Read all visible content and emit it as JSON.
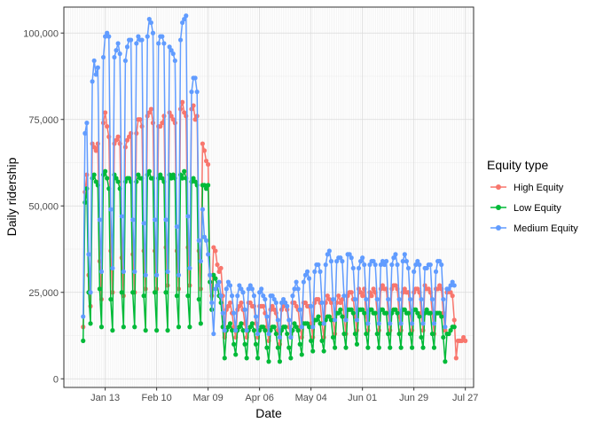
{
  "chart_data": {
    "type": "line",
    "xlabel": "Date",
    "ylabel": "Daily ridership",
    "x_start": "2020-01-01",
    "ylim": [
      0,
      105000
    ],
    "grid": true,
    "legend_title": "Equity type",
    "legend_position": "right",
    "x_ticks": [
      {
        "date": "2020-01-13",
        "label": "Jan 13"
      },
      {
        "date": "2020-02-10",
        "label": "Feb 10"
      },
      {
        "date": "2020-03-09",
        "label": "Mar 09"
      },
      {
        "date": "2020-04-06",
        "label": "Apr 06"
      },
      {
        "date": "2020-05-04",
        "label": "May 04"
      },
      {
        "date": "2020-06-01",
        "label": "Jun 01"
      },
      {
        "date": "2020-06-29",
        "label": "Jun 29"
      },
      {
        "date": "2020-07-27",
        "label": "Jul 27"
      }
    ],
    "y_ticks": [
      {
        "value": 0,
        "label": "0"
      },
      {
        "value": 25000,
        "label": "25,000"
      },
      {
        "value": 50000,
        "label": "50,000"
      },
      {
        "value": 75000,
        "label": "75,000"
      },
      {
        "value": 100000,
        "label": "100,000"
      }
    ],
    "series": [
      {
        "name": "High Equity",
        "color": "#F8766D",
        "values": [
          15000,
          54000,
          59000,
          30000,
          21000,
          68000,
          67000,
          66000,
          68000,
          34000,
          23000,
          74000,
          77000,
          73000,
          70000,
          37000,
          25000,
          68000,
          69000,
          70000,
          68000,
          35000,
          24000,
          67000,
          69000,
          70000,
          71000,
          36000,
          25000,
          71000,
          75000,
          75000,
          73000,
          37000,
          26000,
          76000,
          77000,
          78000,
          74000,
          37000,
          26000,
          73000,
          73000,
          74000,
          76000,
          38000,
          27000,
          77000,
          76000,
          75000,
          74000,
          37000,
          26000,
          78000,
          80000,
          77000,
          76000,
          38000,
          27000,
          78000,
          79000,
          75000,
          76000,
          37000,
          26000,
          68000,
          66000,
          63000,
          62000,
          30000,
          24000,
          38000,
          37000,
          33000,
          31000,
          32000,
          24000,
          12000,
          20000,
          21000,
          22000,
          19000,
          15000,
          12000,
          20000,
          21000,
          22000,
          20000,
          16000,
          12000,
          22000,
          22000,
          21000,
          21000,
          16000,
          12000,
          21000,
          21000,
          21000,
          19000,
          15000,
          11000,
          20000,
          21000,
          20000,
          19000,
          14000,
          10000,
          20000,
          21000,
          22000,
          20000,
          15000,
          12000,
          22000,
          22000,
          21000,
          20000,
          15000,
          12000,
          22000,
          22000,
          21000,
          21000,
          16000,
          12000,
          22000,
          23000,
          23000,
          22000,
          16000,
          12000,
          22000,
          24000,
          23000,
          22000,
          17000,
          13000,
          22000,
          24000,
          22000,
          23000,
          18000,
          13000,
          24000,
          25000,
          25000,
          23000,
          18000,
          14000,
          26000,
          25000,
          24000,
          26000,
          18000,
          14000,
          25000,
          24000,
          26000,
          25000,
          19000,
          14000,
          26000,
          27000,
          26000,
          26000,
          19000,
          14000,
          26000,
          27000,
          27000,
          26000,
          18000,
          14000,
          25000,
          26000,
          25000,
          25000,
          19000,
          14000,
          25000,
          26000,
          26000,
          25000,
          19000,
          14000,
          27000,
          26000,
          26000,
          25000,
          19000,
          13000,
          26000,
          26000,
          27000,
          26000,
          19000,
          14000,
          25000,
          26000,
          25000,
          24000,
          17000,
          6000,
          11000,
          11000,
          11000,
          12000,
          11000
        ]
      },
      {
        "name": "Low Equity",
        "color": "#00BA38",
        "values": [
          11000,
          51000,
          55000,
          25000,
          16000,
          58000,
          59000,
          57000,
          56000,
          26000,
          15000,
          59000,
          60000,
          58000,
          55000,
          23000,
          14000,
          59000,
          58000,
          57000,
          55000,
          25000,
          15000,
          57000,
          58000,
          58000,
          57000,
          25000,
          15000,
          57000,
          59000,
          58000,
          58000,
          24000,
          14000,
          59000,
          60000,
          58000,
          58000,
          25000,
          14000,
          58000,
          59000,
          58000,
          57000,
          25000,
          14000,
          59000,
          58000,
          59000,
          58000,
          24000,
          15000,
          59000,
          58000,
          60000,
          58000,
          24000,
          15000,
          57000,
          58000,
          57000,
          56000,
          23000,
          16000,
          56000,
          56000,
          55000,
          56000,
          28000,
          20000,
          30000,
          29000,
          27000,
          24000,
          22000,
          15000,
          6000,
          14000,
          15000,
          16000,
          14000,
          10000,
          7000,
          14000,
          15000,
          16000,
          14000,
          10000,
          6000,
          14000,
          15000,
          16000,
          14000,
          10000,
          6000,
          14000,
          15000,
          15000,
          14000,
          9000,
          5000,
          14000,
          15000,
          15000,
          13000,
          9000,
          5000,
          14000,
          15000,
          15000,
          13000,
          9000,
          6000,
          14000,
          16000,
          15000,
          14000,
          10000,
          7000,
          16000,
          16000,
          16000,
          15000,
          11000,
          8000,
          17000,
          17000,
          18000,
          16000,
          11000,
          8000,
          17000,
          18000,
          18000,
          17000,
          12000,
          9000,
          19000,
          19000,
          20000,
          18000,
          13000,
          9000,
          20000,
          20000,
          20000,
          19000,
          13000,
          10000,
          20000,
          20000,
          20000,
          19000,
          13000,
          9000,
          20000,
          20000,
          19000,
          19000,
          13000,
          9000,
          20000,
          20000,
          19000,
          19000,
          13000,
          9000,
          19000,
          20000,
          20000,
          19000,
          13000,
          9000,
          20000,
          20000,
          19000,
          19000,
          13000,
          9000,
          20000,
          20000,
          19000,
          18000,
          12000,
          9000,
          19000,
          20000,
          19000,
          19000,
          13000,
          9000,
          19000,
          19000,
          19000,
          18000,
          12000,
          5000,
          13000,
          13000,
          14000,
          15000,
          15000
        ]
      },
      {
        "name": "Medium Equity",
        "color": "#619CFF",
        "values": [
          18000,
          71000,
          74000,
          36000,
          25000,
          86000,
          92000,
          88000,
          90000,
          46000,
          31000,
          93000,
          99000,
          100000,
          99000,
          49000,
          32000,
          93000,
          95000,
          97000,
          94000,
          47000,
          31000,
          92000,
          96000,
          98000,
          98000,
          46000,
          31000,
          97000,
          99000,
          98000,
          98000,
          45000,
          30000,
          99000,
          104000,
          103000,
          100000,
          46000,
          30000,
          97000,
          99000,
          99000,
          97000,
          46000,
          31000,
          96000,
          95000,
          94000,
          92000,
          44000,
          30000,
          98000,
          103000,
          104000,
          105000,
          47000,
          32000,
          83000,
          87000,
          87000,
          83000,
          40000,
          34000,
          49000,
          41000,
          40000,
          36000,
          30000,
          22000,
          13000,
          26000,
          27000,
          28000,
          24000,
          19000,
          14000,
          26000,
          28000,
          27000,
          24000,
          19000,
          14000,
          24000,
          27000,
          26000,
          25000,
          20000,
          14000,
          26000,
          27000,
          26000,
          24000,
          18000,
          13000,
          25000,
          26000,
          24000,
          23000,
          18000,
          13000,
          24000,
          24000,
          23000,
          22000,
          17000,
          12000,
          22000,
          23000,
          22000,
          21000,
          17000,
          12000,
          24000,
          26000,
          28000,
          26000,
          20000,
          15000,
          28000,
          30000,
          31000,
          29000,
          21000,
          15000,
          31000,
          33000,
          33000,
          31000,
          22000,
          16000,
          33000,
          36000,
          37000,
          34000,
          23000,
          17000,
          34000,
          35000,
          35000,
          34000,
          24000,
          17000,
          36000,
          36000,
          35000,
          32000,
          23000,
          17000,
          32000,
          34000,
          35000,
          33000,
          23000,
          16000,
          33000,
          34000,
          34000,
          33000,
          23000,
          16000,
          33000,
          34000,
          33000,
          34000,
          23000,
          16000,
          33000,
          35000,
          36000,
          33000,
          23000,
          16000,
          34000,
          36000,
          34000,
          32000,
          23000,
          16000,
          31000,
          33000,
          34000,
          33000,
          23000,
          16000,
          32000,
          32000,
          33000,
          33000,
          23000,
          16000,
          31000,
          34000,
          34000,
          33000,
          23000,
          15000,
          26000,
          26000,
          27000,
          28000,
          27000
        ]
      }
    ]
  }
}
